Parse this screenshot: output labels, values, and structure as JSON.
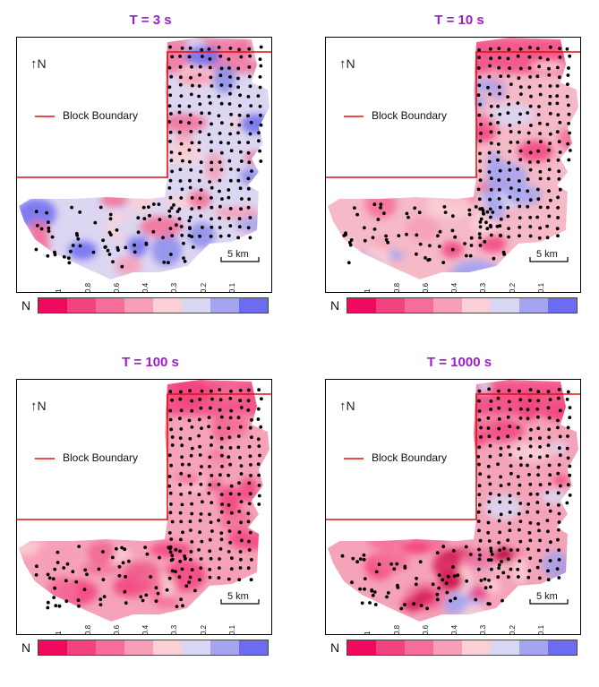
{
  "panels": [
    {
      "title": "T = 3 s",
      "variant": "blue"
    },
    {
      "title": "T = 10 s",
      "variant": "mixed"
    },
    {
      "title": "T = 100 s",
      "variant": "pink"
    },
    {
      "title": "T = 1000 s",
      "variant": "pinkhot"
    }
  ],
  "north_label": "N",
  "legend_label": "Block Boundary",
  "scale_label": "5 km",
  "colorbar": {
    "label": "N",
    "ticks": [
      "1",
      "0.8",
      "0.6",
      "0.4",
      "0.3",
      "0.2",
      "0.1"
    ],
    "colors": [
      "#f0095e",
      "#f2427f",
      "#f56d98",
      "#f79db6",
      "#fad0d6",
      "#d8d8f5",
      "#a4a4f0",
      "#6c6cf0"
    ]
  },
  "colors": {
    "title": "#9b1ec8",
    "boundary": "#e01010"
  }
}
